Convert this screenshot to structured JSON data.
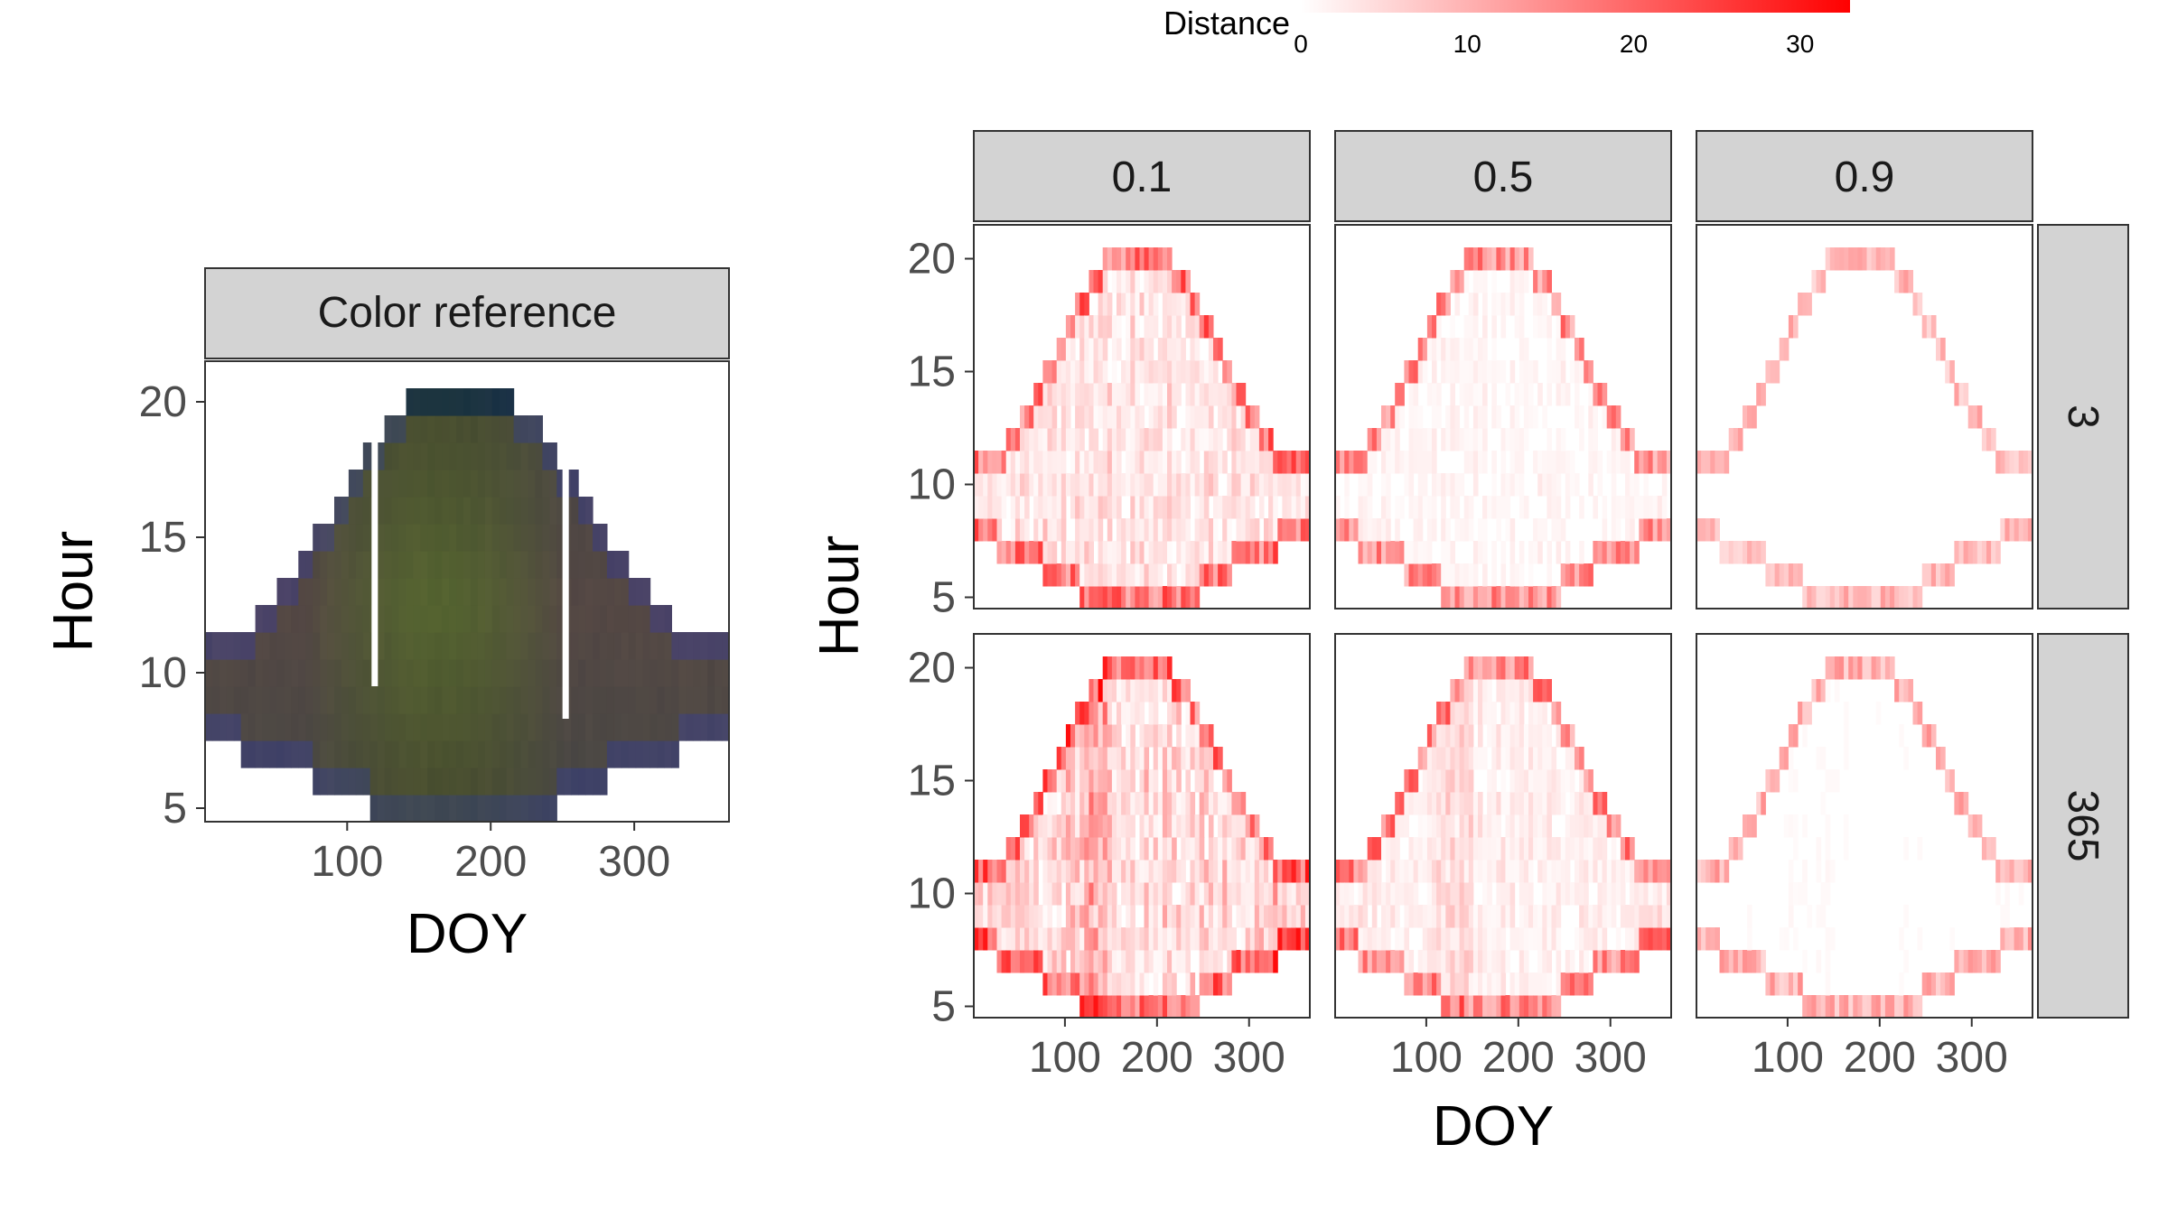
{
  "colors": {
    "panel_border": "#333333",
    "strip_fill": "#d3d3d3",
    "scale_low": "#ffffff",
    "scale_high": "#ff0000",
    "axis_text": "#4d4d4d",
    "title_text": "#000000"
  },
  "chart_data": [
    {
      "type": "heatmap",
      "title": "",
      "panel_label": "Color reference",
      "xlabel": "DOY",
      "ylabel": "Hour",
      "x_ticks": [
        "100",
        "200",
        "300"
      ],
      "y_ticks": [
        "5",
        "10",
        "15",
        "20"
      ],
      "xlim": [
        1,
        366
      ],
      "ylim": [
        4.5,
        21.5
      ],
      "grid": false,
      "legend": "none",
      "notes": "Each tile coloured by mean photo colour; daylight region only (roughly 5-21 h around DOY 180, 7-17 h in winter)."
    },
    {
      "type": "heatmap",
      "title": "",
      "xlabel": "DOY",
      "ylabel": "Hour",
      "x_ticks": [
        "100",
        "200",
        "300"
      ],
      "y_ticks": [
        "5",
        "10",
        "15",
        "20"
      ],
      "xlim": [
        1,
        366
      ],
      "ylim": [
        4.5,
        21.5
      ],
      "grid": false,
      "facet_columns": [
        "0.1",
        "0.5",
        "0.9"
      ],
      "facet_rows": [
        "3",
        "365"
      ],
      "legend": {
        "title": "Distance",
        "position": "top",
        "ticks": [
          "0",
          "10",
          "20",
          "30"
        ],
        "range": [
          0,
          33
        ],
        "low_color": "#ffffff",
        "high_color": "#ff0000"
      },
      "panels": [
        {
          "column": "0.1",
          "row": "3",
          "overall_level": 0.25,
          "edge_level": 0.8
        },
        {
          "column": "0.5",
          "row": "3",
          "overall_level": 0.08,
          "edge_level": 0.65
        },
        {
          "column": "0.9",
          "row": "3",
          "overall_level": 0.01,
          "edge_level": 0.4
        },
        {
          "column": "0.1",
          "row": "365",
          "overall_level": 0.32,
          "edge_level": 0.85
        },
        {
          "column": "0.5",
          "row": "365",
          "overall_level": 0.14,
          "edge_level": 0.7
        },
        {
          "column": "0.9",
          "row": "365",
          "overall_level": 0.02,
          "edge_level": 0.45
        }
      ]
    }
  ]
}
